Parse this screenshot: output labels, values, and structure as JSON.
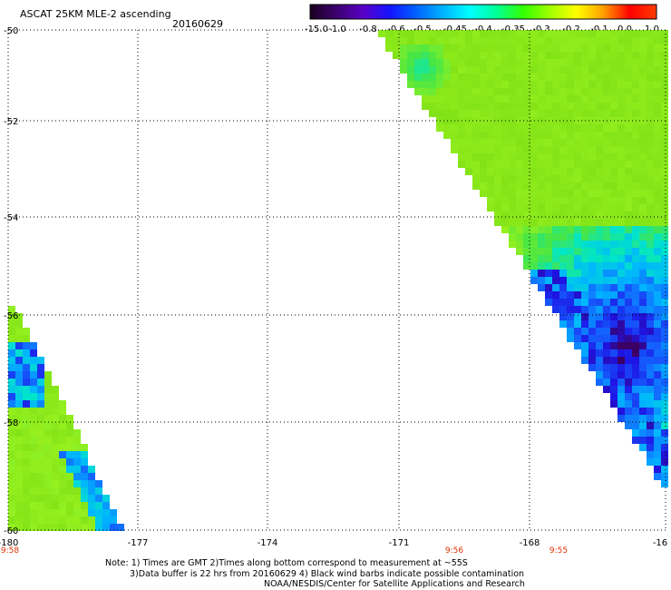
{
  "header": {
    "title": "ASCAT 25KM MLE-2 ascending",
    "date": "20160629"
  },
  "colorbar": {
    "labels": [
      "-15.0",
      "-1.0",
      "-0.8",
      "-0.6",
      "-0.5",
      "-0.45",
      "-0.4",
      "-0.35",
      "-0.3",
      "-0.2",
      "-0.1",
      "0.0",
      "1.0"
    ],
    "colors": [
      "#1a0020",
      "#3c006e",
      "#5a00c8",
      "#1414ff",
      "#0064ff",
      "#00b4ff",
      "#00ffff",
      "#00ff96",
      "#32ff00",
      "#a0ff00",
      "#ffff00",
      "#ffa000",
      "#ff0000",
      "#ff3c00"
    ]
  },
  "map": {
    "lat_labels": [
      "-50",
      "-52",
      "-54",
      "-56",
      "-58",
      "-60"
    ],
    "lon_labels": [
      "-180",
      "-177",
      "-174",
      "-171",
      "-168",
      "-16"
    ],
    "time_labels": [
      "9:58",
      "9:56",
      "9:55"
    ],
    "time_color": "#e03000"
  },
  "notes": {
    "line1": "Note: 1) Times are GMT 2)Times along bottom correspond to measurement at ~55S",
    "line2": "3)Data buffer is 22 hrs from 20160629 4) Black wind barbs indicate possible contamination",
    "line3": "NOAA/NESDIS/Center for Satellite Applications and Research"
  }
}
